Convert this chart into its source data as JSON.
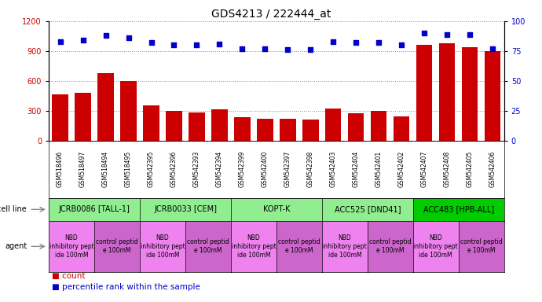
{
  "title": "GDS4213 / 222444_at",
  "samples": [
    "GSM518496",
    "GSM518497",
    "GSM518494",
    "GSM518495",
    "GSM542395",
    "GSM542396",
    "GSM542393",
    "GSM542394",
    "GSM542399",
    "GSM542400",
    "GSM542397",
    "GSM542398",
    "GSM542403",
    "GSM542404",
    "GSM542401",
    "GSM542402",
    "GSM542407",
    "GSM542408",
    "GSM542405",
    "GSM542406"
  ],
  "counts": [
    460,
    480,
    680,
    600,
    350,
    295,
    285,
    310,
    235,
    220,
    215,
    210,
    320,
    275,
    300,
    240,
    960,
    980,
    940,
    900
  ],
  "percentiles": [
    83,
    84,
    88,
    86,
    82,
    80,
    80,
    81,
    77,
    77,
    76,
    76,
    83,
    82,
    82,
    80,
    90,
    89,
    89,
    77
  ],
  "bar_color": "#cc0000",
  "dot_color": "#0000cc",
  "ylim_left": [
    0,
    1200
  ],
  "ylim_right": [
    0,
    100
  ],
  "yticks_left": [
    0,
    300,
    600,
    900,
    1200
  ],
  "yticks_right": [
    0,
    25,
    50,
    75,
    100
  ],
  "cell_lines": [
    {
      "label": "JCRB0086 [TALL-1]",
      "start": 0,
      "end": 4,
      "color": "#90ee90"
    },
    {
      "label": "JCRB0033 [CEM]",
      "start": 4,
      "end": 8,
      "color": "#90ee90"
    },
    {
      "label": "KOPT-K",
      "start": 8,
      "end": 12,
      "color": "#90ee90"
    },
    {
      "label": "ACC525 [DND41]",
      "start": 12,
      "end": 16,
      "color": "#90ee90"
    },
    {
      "label": "ACC483 [HPB-ALL]",
      "start": 16,
      "end": 20,
      "color": "#00cc00"
    }
  ],
  "agents": [
    {
      "label": "NBD\ninhibitory pept\nide 100mM",
      "start": 0,
      "end": 2,
      "color": "#ee82ee"
    },
    {
      "label": "control peptid\ne 100mM",
      "start": 2,
      "end": 4,
      "color": "#cc66cc"
    },
    {
      "label": "NBD\ninhibitory pept\nide 100mM",
      "start": 4,
      "end": 6,
      "color": "#ee82ee"
    },
    {
      "label": "control peptid\ne 100mM",
      "start": 6,
      "end": 8,
      "color": "#cc66cc"
    },
    {
      "label": "NBD\ninhibitory pept\nide 100mM",
      "start": 8,
      "end": 10,
      "color": "#ee82ee"
    },
    {
      "label": "control peptid\ne 100mM",
      "start": 10,
      "end": 12,
      "color": "#cc66cc"
    },
    {
      "label": "NBD\ninhibitory pept\nide 100mM",
      "start": 12,
      "end": 14,
      "color": "#ee82ee"
    },
    {
      "label": "control peptid\ne 100mM",
      "start": 14,
      "end": 16,
      "color": "#cc66cc"
    },
    {
      "label": "NBD\ninhibitory pept\nide 100mM",
      "start": 16,
      "end": 18,
      "color": "#ee82ee"
    },
    {
      "label": "control peptid\ne 100mM",
      "start": 18,
      "end": 20,
      "color": "#cc66cc"
    }
  ],
  "legend_count_color": "#cc0000",
  "legend_dot_color": "#0000cc",
  "bg_color": "#ffffff",
  "grid_color": "#888888",
  "sample_bg_color": "#c8c8c8",
  "title_fontsize": 10
}
